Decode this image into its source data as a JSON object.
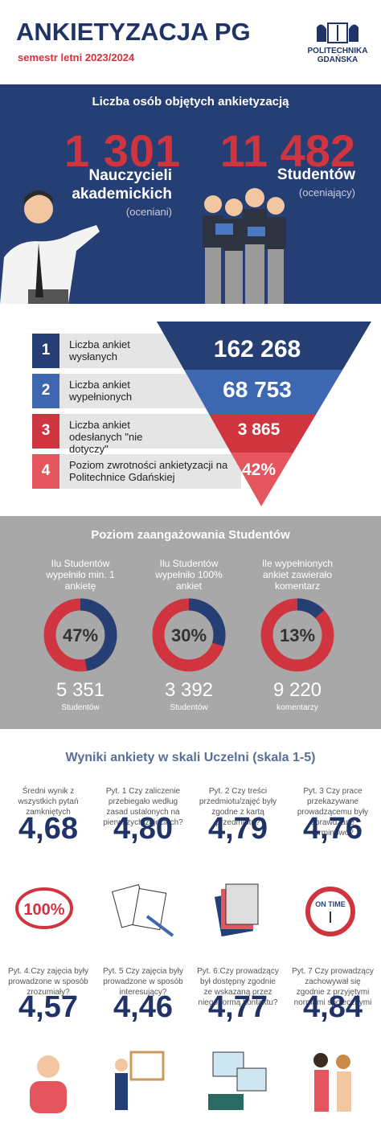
{
  "header": {
    "title": "ANKIETYZACJA PG",
    "subtitle": "semestr letni 2023/2024",
    "logo_lines": [
      "POLITECHNIKA",
      "GDAŃSKA"
    ]
  },
  "people": {
    "heading": "Liczba osób objętych ankietyzacją",
    "teachers": {
      "count": "1 301",
      "label_lines": [
        "Nauczycieli",
        "akademickich"
      ],
      "note": "(oceniani)"
    },
    "students": {
      "count": "11 482",
      "label": "Studentów",
      "note": "(oceniający)"
    }
  },
  "funnel": {
    "rows": [
      {
        "number": "1",
        "label": "Liczba ankiet wysłanych",
        "value": "162 268"
      },
      {
        "number": "2",
        "label": "Liczba ankiet wypełnionych",
        "value": "68 753"
      },
      {
        "number": "3",
        "label": "Liczba ankiet odesłanych \"nie dotyczy\"",
        "value": "3 865"
      },
      {
        "number": "4",
        "label": "Poziom zwrotności ankietyzacji na Politechnice Gdańskiej",
        "value": "42%"
      }
    ]
  },
  "engagement": {
    "heading": "Poziom zaangażowania Studentów",
    "items": [
      {
        "question": "Ilu Studentów wypełniło min. 1 ankietę",
        "percent": 47,
        "percent_label": "47%",
        "count": "5 351",
        "unit": "Studentów"
      },
      {
        "question": "Ilu Studentów wypełniło 100% ankiet",
        "percent": 30,
        "percent_label": "30%",
        "count": "3 392",
        "unit": "Studentów"
      },
      {
        "question": "Ile wypełnionych ankiet zawierało komentarz",
        "percent": 13,
        "percent_label": "13%",
        "count": "9 220",
        "unit": "komentarzy"
      }
    ]
  },
  "results": {
    "heading": "Wyniki ankiety w skali Uczelni (skala 1-5)",
    "items": [
      {
        "question": "Średni wynik z wszystkich pytań zamkniętych",
        "score": "4,68",
        "badge": "100%"
      },
      {
        "question": "Pyt. 1 Czy zaliczenie przebiegało według zasad ustalonych na pierwszych zajęciach?",
        "score": "4,80"
      },
      {
        "question": "Pyt. 2 Czy treści przedmiotu/zajęć były zgodne z kartą przedmiotu?",
        "score": "4,79"
      },
      {
        "question": "Pyt. 3 Czy prace przekazywane prowadzącemu były sprawdzane terminowo?",
        "score": "4,76",
        "badge": "ON TIME"
      },
      {
        "question": "Pyt. 4.Czy zajęcia były prowadzone w sposób zrozumiały?",
        "score": "4,57"
      },
      {
        "question": "Pyt. 5 Czy zajęcia były prowadzone w sposób interesujący?",
        "score": "4,46"
      },
      {
        "question": "Pyt. 6.Czy prowadzący był dostępny zgodnie ze wskazaną przez niego formą kontaktu?",
        "score": "4,77"
      },
      {
        "question": "Pyt. 7 Czy prowadzący zachowywał się zgodnie z przyjętymi normami społecznymi",
        "score": "4,84"
      }
    ]
  }
}
